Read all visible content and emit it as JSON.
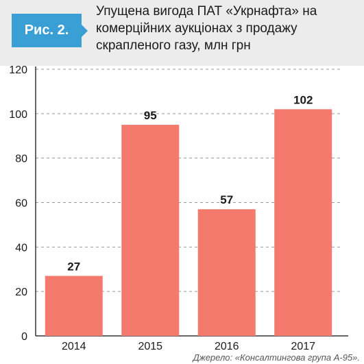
{
  "header": {
    "figure_label": "Рис. 2.",
    "title_lines": [
      "Упущена вигода ПАТ «Укрнафта» на",
      "комерційних аукціонах з продажу",
      "скрапленого газу, млн грн"
    ],
    "tag_color": "#3a9fd5",
    "background_color": "#ececec"
  },
  "chart_data": {
    "type": "bar",
    "categories": [
      "2014",
      "2015",
      "2016",
      "2017"
    ],
    "values": [
      27,
      95,
      57,
      102
    ],
    "data_labels": [
      "27",
      "95",
      "57",
      "102"
    ],
    "ylim": [
      0,
      120
    ],
    "yticks": [
      0,
      20,
      40,
      60,
      80,
      100,
      120
    ],
    "grid": true,
    "bar_color": "#f47a6e",
    "xlabel": "",
    "ylabel": ""
  },
  "footer": {
    "source": "Джерело: «Консалтингова група А-95»."
  }
}
